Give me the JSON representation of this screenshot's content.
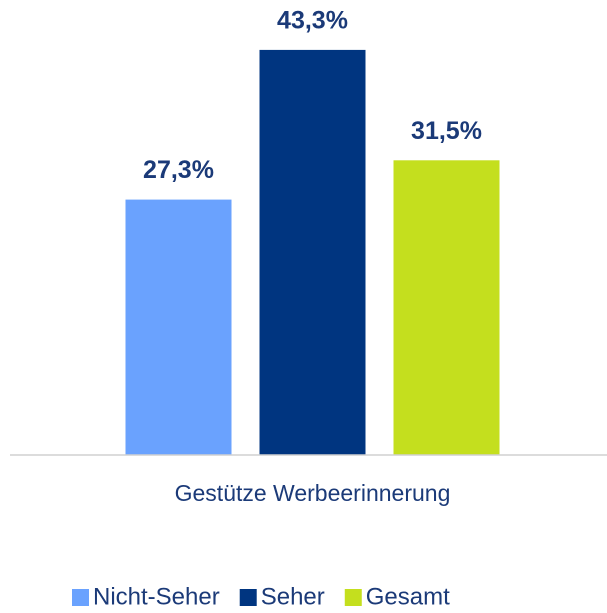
{
  "chart_data": {
    "type": "bar",
    "categories": [
      "Gestütze Werbeerinnerung"
    ],
    "series": [
      {
        "name": "Nicht-Seher",
        "color": "#6aa2fe",
        "values": [
          27.3
        ],
        "value_labels": [
          "27,3%"
        ]
      },
      {
        "name": "Seher",
        "color": "#003580",
        "values": [
          43.3
        ],
        "value_labels": [
          "43,3%"
        ]
      },
      {
        "name": "Gesamt",
        "color": "#c4df1e",
        "values": [
          31.5
        ],
        "value_labels": [
          "31,5%"
        ]
      }
    ],
    "ylim": [
      0,
      45
    ],
    "legend": "bottom"
  }
}
